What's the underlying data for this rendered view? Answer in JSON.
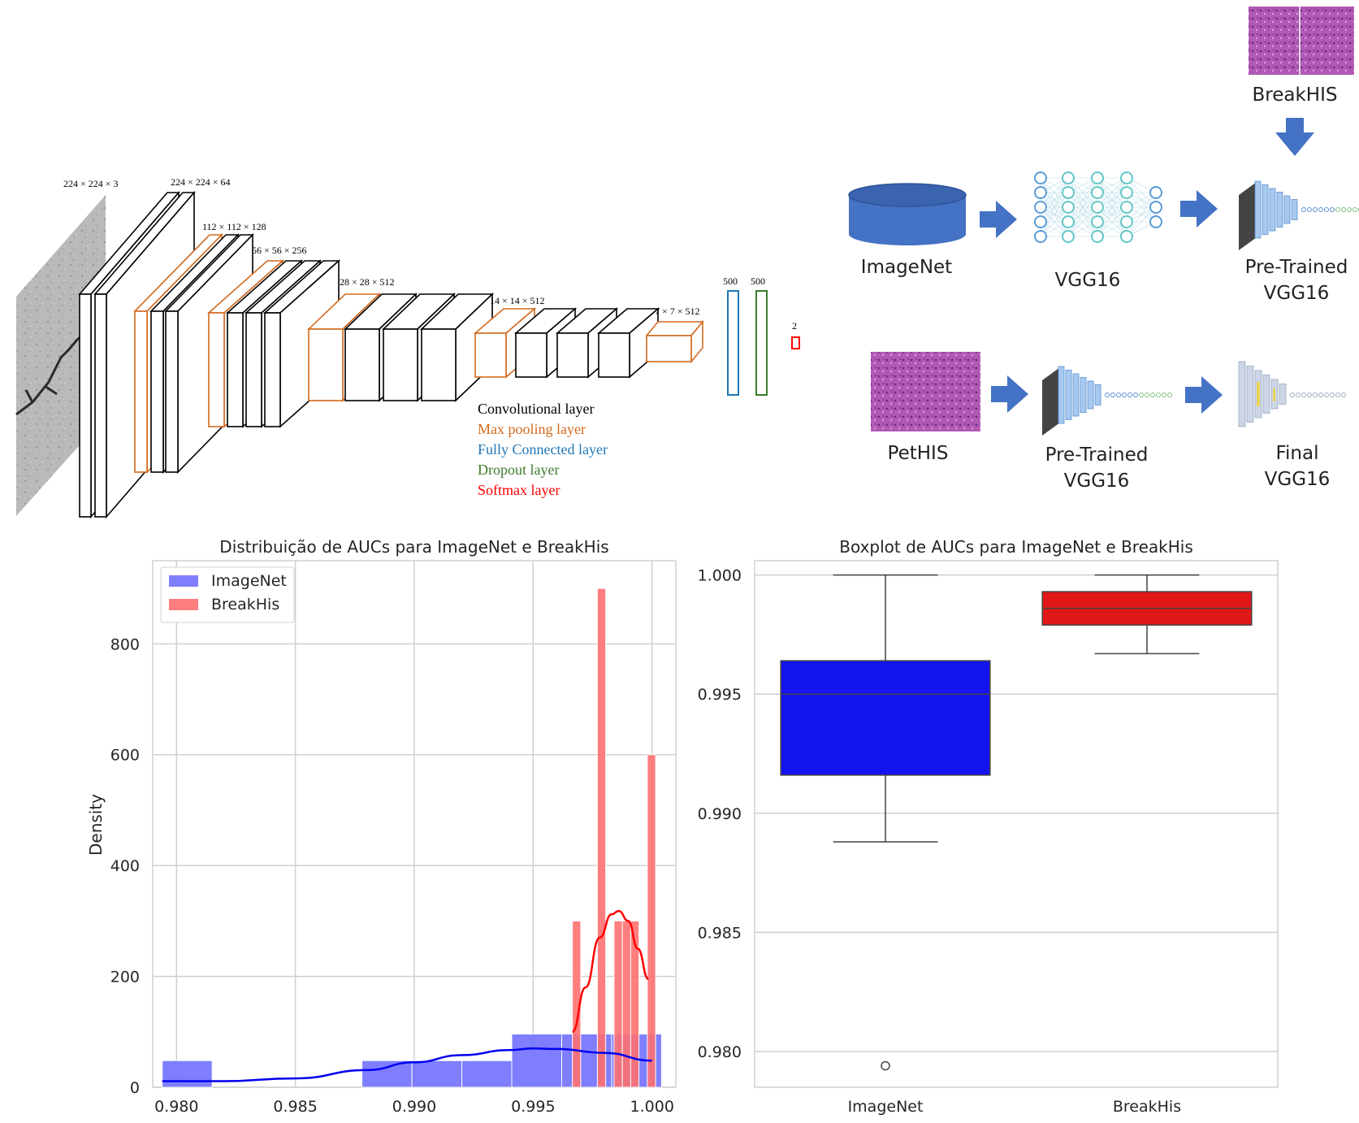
{
  "cnn": {
    "dims": [
      "224 × 224 × 3",
      "224 × 224 × 64",
      "112 × 112 × 128",
      "56 × 56 × 256",
      "28 × 28 × 512",
      "14 × 14 × 512",
      "7 × 7 × 512",
      "500",
      "500",
      "2"
    ],
    "legend": [
      {
        "label": "Convolutional layer",
        "color": "#000000"
      },
      {
        "label": "Max pooling layer",
        "color": "#d2691e"
      },
      {
        "label": "Fully Connected layer",
        "color": "#1f77b4"
      },
      {
        "label": "Dropout layer",
        "color": "#3a7d2c"
      },
      {
        "label": "Softmax layer",
        "color": "#ff0000"
      }
    ]
  },
  "flow": {
    "breakhis": "BreakHIS",
    "imagenet": "ImageNet",
    "vgg16": "VGG16",
    "pretrained_1": "Pre-Trained",
    "pretrained_2": "VGG16",
    "pethis": "PetHIS",
    "pretrained2_1": "Pre-Trained",
    "pretrained2_2": "VGG16",
    "final_1": "Final",
    "final_2": "VGG16"
  },
  "chart_data": [
    {
      "type": "bar",
      "title": "Distribuição de AUCs para ImageNet e BreakHis",
      "xlabel": "",
      "ylabel": "Density",
      "xlim": [
        0.979,
        1.001
      ],
      "ylim": [
        0,
        950
      ],
      "xticks": [
        "0.980",
        "0.985",
        "0.990",
        "0.995",
        "1.000"
      ],
      "yticks": [
        "0",
        "200",
        "400",
        "600",
        "800"
      ],
      "legend": "top-left",
      "series": [
        {
          "name": "ImageNet",
          "color": "#7070ff",
          "bins": [
            {
              "x0": 0.9794,
              "x1": 0.9815,
              "y": 48
            },
            {
              "x0": 0.9878,
              "x1": 0.9899,
              "y": 48
            },
            {
              "x0": 0.9899,
              "x1": 0.992,
              "y": 48
            },
            {
              "x0": 0.992,
              "x1": 0.9941,
              "y": 48
            },
            {
              "x0": 0.9941,
              "x1": 0.9962,
              "y": 96
            },
            {
              "x0": 0.9962,
              "x1": 0.9983,
              "y": 96
            },
            {
              "x0": 0.9983,
              "x1": 1.0004,
              "y": 96
            }
          ],
          "kde": [
            [
              0.9794,
              11
            ],
            [
              0.982,
              11
            ],
            [
              0.985,
              16
            ],
            [
              0.988,
              31
            ],
            [
              0.99,
              45
            ],
            [
              0.992,
              58
            ],
            [
              0.994,
              67
            ],
            [
              0.995,
              70
            ],
            [
              0.996,
              69
            ],
            [
              0.998,
              62
            ],
            [
              1.0,
              48
            ]
          ]
        },
        {
          "name": "BreakHis",
          "color": "#ff7070",
          "bins": [
            {
              "x0": 0.99665,
              "x1": 0.997,
              "y": 300
            },
            {
              "x0": 0.997,
              "x1": 0.99735,
              "y": 0
            },
            {
              "x0": 0.99735,
              "x1": 0.9977,
              "y": 0
            },
            {
              "x0": 0.9977,
              "x1": 0.99805,
              "y": 900
            },
            {
              "x0": 0.99805,
              "x1": 0.9984,
              "y": 0
            },
            {
              "x0": 0.9984,
              "x1": 0.99875,
              "y": 300
            },
            {
              "x0": 0.99875,
              "x1": 0.9991,
              "y": 300
            },
            {
              "x0": 0.9991,
              "x1": 0.99945,
              "y": 300
            },
            {
              "x0": 0.99945,
              "x1": 0.9998,
              "y": 0
            },
            {
              "x0": 0.9998,
              "x1": 1.00015,
              "y": 600
            }
          ],
          "kde": [
            [
              0.99665,
              100
            ],
            [
              0.9972,
              180
            ],
            [
              0.9978,
              270
            ],
            [
              0.9983,
              312
            ],
            [
              0.9986,
              318
            ],
            [
              0.999,
              300
            ],
            [
              0.9994,
              250
            ],
            [
              0.99985,
              195
            ]
          ]
        }
      ]
    },
    {
      "type": "box",
      "title": "Boxplot de AUCs para ImageNet e BreakHis",
      "xlabel": "",
      "ylabel": "",
      "ylim": [
        0.9785,
        1.0006
      ],
      "yticks": [
        "0.980",
        "0.985",
        "0.990",
        "0.995",
        "1.000"
      ],
      "categories": [
        "ImageNet",
        "BreakHis"
      ],
      "boxes": [
        {
          "name": "ImageNet",
          "color": "#1414f0",
          "whislo": 0.9888,
          "q1": 0.9916,
          "med": 0.995,
          "q3": 0.9964,
          "whishi": 1.0,
          "fliers": [
            0.9794
          ]
        },
        {
          "name": "BreakHis",
          "color": "#e01818",
          "whislo": 0.9967,
          "q1": 0.9979,
          "med": 0.9986,
          "q3": 0.9993,
          "whishi": 1.0,
          "fliers": []
        }
      ]
    }
  ]
}
